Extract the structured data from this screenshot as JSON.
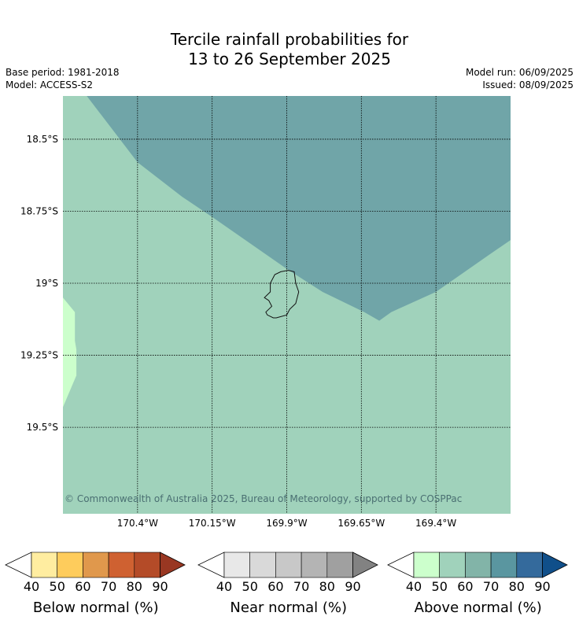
{
  "title": {
    "line1": "Tercile rainfall probabilities for",
    "line2": "13 to 26 September 2025"
  },
  "meta": {
    "base_period": "Base period: 1981-2018",
    "model": "Model: ACCESS-S2",
    "model_run": "Model run: 06/09/2025",
    "issued": "Issued: 08/09/2025"
  },
  "copyright": "© Commonwealth of Australia 2025, Bureau of Meteorology, supported by COSPPac",
  "chart_data": {
    "type": "heatmap",
    "projection": "lat-lon map",
    "x_ticks": [
      {
        "value": -170.4,
        "label": "170.4°W"
      },
      {
        "value": -170.15,
        "label": "170.15°W"
      },
      {
        "value": -169.9,
        "label": "169.9°W"
      },
      {
        "value": -169.65,
        "label": "169.65°W"
      },
      {
        "value": -169.4,
        "label": "169.4°W"
      }
    ],
    "y_ticks": [
      {
        "value": -18.5,
        "label": "18.5°S"
      },
      {
        "value": -18.75,
        "label": "18.75°S"
      },
      {
        "value": -19.0,
        "label": "19°S"
      },
      {
        "value": -19.25,
        "label": "19.25°S"
      },
      {
        "value": -19.5,
        "label": "19.5°S"
      }
    ],
    "xlim": [
      -170.65,
      -169.15
    ],
    "ylim": [
      -19.8,
      -18.35
    ],
    "grid": true,
    "regions": [
      {
        "category": "Above normal",
        "probability_band": "70-80",
        "color": "#70a5a8",
        "polygon": [
          [
            -170.57,
            -18.35
          ],
          [
            -170.4,
            -18.58
          ],
          [
            -170.25,
            -18.7
          ],
          [
            -170.15,
            -18.77
          ],
          [
            -169.9,
            -18.95
          ],
          [
            -169.78,
            -19.03
          ],
          [
            -169.64,
            -19.1
          ],
          [
            -169.59,
            -19.13
          ],
          [
            -169.55,
            -19.1
          ],
          [
            -169.4,
            -19.03
          ],
          [
            -169.22,
            -18.9
          ],
          [
            -169.15,
            -18.85
          ],
          [
            -169.15,
            -18.35
          ]
        ]
      },
      {
        "category": "Above normal",
        "probability_band": "40-50",
        "color": "#ccffcc",
        "polygon": [
          [
            -170.65,
            -19.05
          ],
          [
            -170.61,
            -19.1
          ],
          [
            -170.61,
            -19.2
          ],
          [
            -170.605,
            -19.23
          ],
          [
            -170.605,
            -19.32
          ],
          [
            -170.65,
            -19.43
          ]
        ]
      }
    ],
    "background": {
      "category": "Above normal",
      "probability_band": "50-60",
      "color": "#a0d2bb"
    },
    "island_outline": [
      [
        -169.92,
        -18.96
      ],
      [
        -169.895,
        -18.955
      ],
      [
        -169.875,
        -18.96
      ],
      [
        -169.87,
        -19.0
      ],
      [
        -169.86,
        -19.03
      ],
      [
        -169.87,
        -19.07
      ],
      [
        -169.89,
        -19.09
      ],
      [
        -169.9,
        -19.11
      ],
      [
        -169.935,
        -19.12
      ],
      [
        -169.945,
        -19.12
      ],
      [
        -169.965,
        -19.11
      ],
      [
        -169.97,
        -19.1
      ],
      [
        -169.95,
        -19.08
      ],
      [
        -169.96,
        -19.06
      ],
      [
        -169.975,
        -19.05
      ],
      [
        -169.955,
        -19.03
      ],
      [
        -169.955,
        -19.0
      ],
      [
        -169.94,
        -18.97
      ]
    ],
    "legend": [
      {
        "name": "Below normal (%)",
        "ticks": [
          "40",
          "50",
          "60",
          "70",
          "80",
          "90"
        ],
        "colors": [
          "#ffffff",
          "#ffeda0",
          "#fecc5c",
          "#e0984c",
          "#cf6131",
          "#b44b28",
          "#993722"
        ]
      },
      {
        "name": "Near normal (%)",
        "ticks": [
          "40",
          "50",
          "60",
          "70",
          "80",
          "90"
        ],
        "colors": [
          "#ffffff",
          "#e8e8e8",
          "#d9d9d9",
          "#c8c8c8",
          "#b4b4b4",
          "#a0a0a0",
          "#828282"
        ]
      },
      {
        "name": "Above normal (%)",
        "ticks": [
          "40",
          "50",
          "60",
          "70",
          "80",
          "90"
        ],
        "colors": [
          "#ffffff",
          "#ccffcc",
          "#a0d2bb",
          "#82b4a8",
          "#5a96a0",
          "#346a9c",
          "#104f8a"
        ]
      }
    ]
  }
}
